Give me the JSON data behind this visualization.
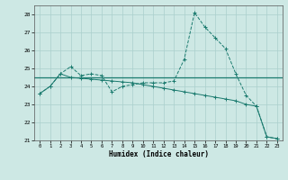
{
  "x": [
    0,
    1,
    2,
    3,
    4,
    5,
    6,
    7,
    8,
    9,
    10,
    11,
    12,
    13,
    14,
    15,
    16,
    17,
    18,
    19,
    20,
    21,
    22,
    23
  ],
  "line1": [
    23.6,
    24.0,
    24.7,
    25.1,
    24.6,
    24.7,
    24.6,
    23.7,
    24.0,
    24.1,
    24.2,
    24.2,
    24.2,
    24.3,
    25.5,
    28.1,
    27.3,
    26.7,
    26.1,
    24.7,
    23.5,
    22.9,
    21.2,
    21.1
  ],
  "line2_y": 24.5,
  "line3": [
    23.6,
    24.0,
    24.7,
    24.5,
    24.45,
    24.4,
    24.35,
    24.3,
    24.25,
    24.2,
    24.1,
    24.0,
    23.9,
    23.8,
    23.7,
    23.6,
    23.5,
    23.4,
    23.3,
    23.2,
    23.0,
    22.9,
    21.2,
    21.1
  ],
  "color": "#1a7a6e",
  "bg_color": "#cde8e4",
  "grid_color": "#aacfcc",
  "ylim": [
    21,
    28.5
  ],
  "xlim": [
    -0.5,
    23.5
  ],
  "yticks": [
    21,
    22,
    23,
    24,
    25,
    26,
    27,
    28
  ],
  "xticks": [
    0,
    1,
    2,
    3,
    4,
    5,
    6,
    7,
    8,
    9,
    10,
    11,
    12,
    13,
    14,
    15,
    16,
    17,
    18,
    19,
    20,
    21,
    22,
    23
  ],
  "xlabel": "Humidex (Indice chaleur)"
}
